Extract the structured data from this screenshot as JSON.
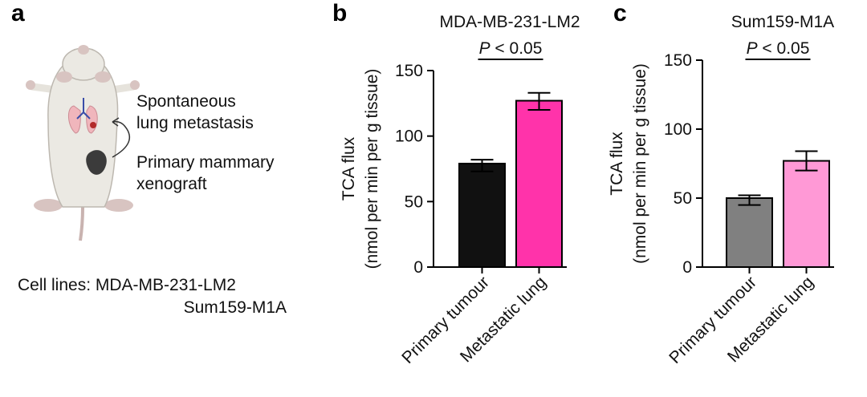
{
  "panel_a": {
    "letter": "a",
    "label_spontaneous_line1": "Spontaneous",
    "label_spontaneous_line2": "lung metastasis",
    "label_primary_line1": "Primary mammary",
    "label_primary_line2": "xenograft",
    "cell_lines_line1": "Cell lines: MDA-MB-231-LM2",
    "cell_lines_line2": "Sum159-M1A"
  },
  "chart_data": [
    {
      "panel": "b",
      "type": "bar",
      "title": "MDA-MB-231-LM2",
      "ylabel_line1": "TCA flux",
      "ylabel_line2": "(nmol per min per g tissue)",
      "categories": [
        "Primary tumour",
        "Metastatic lung"
      ],
      "values": [
        79,
        127
      ],
      "error_upper": [
        82,
        133
      ],
      "error_lower": [
        73,
        120
      ],
      "colors": [
        "#111111",
        "#ff33aa"
      ],
      "ylim": [
        0,
        150
      ],
      "yticks": [
        0,
        50,
        100,
        150
      ],
      "significance": {
        "p": "P",
        "rest": " < 0.05"
      }
    },
    {
      "panel": "c",
      "type": "bar",
      "title": "Sum159-M1A",
      "ylabel_line1": "TCA flux",
      "ylabel_line2": "(nmol per min per g tissue)",
      "categories": [
        "Primary tumour",
        "Metastatic lung"
      ],
      "values": [
        50,
        77
      ],
      "error_upper": [
        52,
        84
      ],
      "error_lower": [
        45,
        70
      ],
      "colors": [
        "#808080",
        "#ff99d6"
      ],
      "ylim": [
        0,
        150
      ],
      "yticks": [
        0,
        50,
        100,
        150
      ],
      "significance": {
        "p": "P",
        "rest": " < 0.05"
      }
    }
  ]
}
